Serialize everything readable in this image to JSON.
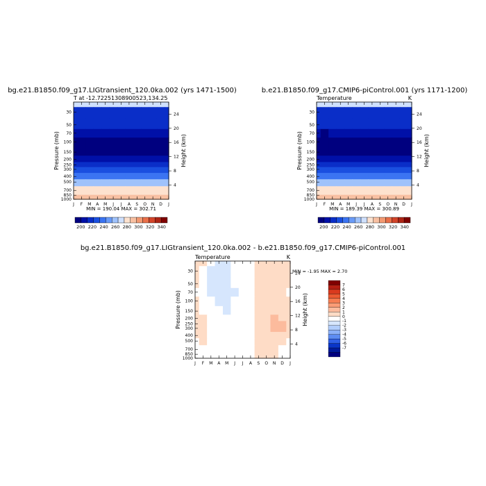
{
  "chart_data": [
    {
      "type": "heatmap",
      "title": "bg.e21.B1850.f09_g17.LIGtransient_120.0ka.002 (yrs 1471-1500)",
      "subtitle_left": "T at -12.72251308900523,134.25",
      "subtitle_right": "",
      "x_ticklabels": [
        "J",
        "F",
        "M",
        "A",
        "M",
        "J",
        "J",
        "A",
        "S",
        "O",
        "N",
        "D",
        "J"
      ],
      "ylabel": "Pressure (mb)",
      "yticks": [
        30,
        50,
        70,
        100,
        150,
        200,
        250,
        300,
        400,
        500,
        700,
        850,
        1000
      ],
      "ylim": [
        1000,
        20
      ],
      "y2label": "Height (km)",
      "y2ticks": [
        4,
        8,
        12,
        16,
        20,
        24
      ],
      "stats": "MIN = 190.04 MAX = 302.71",
      "colorbar_labels": [
        "200",
        "220",
        "240",
        "260",
        "280",
        "300",
        "320",
        "340"
      ],
      "colorbar_colors": [
        "#00007f",
        "#0010a8",
        "#0a2ec8",
        "#1a4fe0",
        "#3b74f2",
        "#6a9bf7",
        "#9fc2fb",
        "#cfe0fd",
        "#fde2cf",
        "#f8c0a2",
        "#f39a73",
        "#e9704a",
        "#d2452a",
        "#ad2516",
        "#7f0000"
      ],
      "values": [
        [
          266.0,
          268.0,
          270.0,
          272.0,
          273.0,
          272.0,
          271.0,
          270.0,
          271.0,
          272.0,
          270.0,
          268.0,
          266.0
        ],
        [
          216.0,
          216.5,
          217.0,
          217.5,
          217.5,
          218.0,
          218.0,
          218.5,
          218.0,
          217.5,
          217.0,
          216.5,
          216.0
        ],
        [
          212.0,
          212.0,
          212.5,
          213.0,
          213.0,
          213.5,
          214.0,
          214.0,
          213.5,
          213.0,
          212.5,
          212.0,
          212.0
        ],
        [
          201.5,
          201.0,
          201.5,
          202.0,
          202.5,
          203.5,
          204.5,
          205.0,
          204.0,
          203.0,
          202.0,
          201.5,
          201.5
        ],
        [
          196.0,
          195.5,
          196.0,
          196.5,
          197.0,
          198.0,
          199.0,
          199.5,
          199.0,
          198.0,
          197.0,
          196.0,
          196.0
        ],
        [
          193.0,
          193.0,
          193.0,
          193.5,
          194.0,
          194.5,
          195.0,
          195.5,
          195.0,
          194.5,
          194.0,
          193.0,
          193.0
        ],
        [
          204.0,
          204.0,
          204.0,
          204.0,
          204.0,
          204.0,
          204.0,
          204.0,
          204.0,
          204.0,
          204.0,
          204.0,
          204.0
        ],
        [
          218.0,
          218.0,
          218.0,
          218.0,
          218.0,
          218.0,
          218.0,
          218.0,
          218.0,
          218.0,
          218.0,
          218.0,
          218.0
        ],
        [
          228.0,
          228.0,
          228.0,
          228.0,
          228.0,
          228.0,
          228.0,
          228.0,
          228.0,
          228.0,
          228.0,
          228.0,
          228.0
        ],
        [
          243.0,
          243.0,
          243.0,
          243.0,
          243.0,
          243.0,
          243.0,
          243.0,
          243.0,
          243.0,
          243.0,
          243.0,
          243.0
        ],
        [
          256.0,
          256.0,
          256.0,
          256.0,
          256.0,
          256.0,
          256.0,
          256.0,
          256.0,
          256.0,
          256.0,
          256.0,
          256.0
        ],
        [
          281.0,
          281.0,
          281.0,
          281.0,
          281.0,
          281.0,
          281.0,
          281.0,
          281.0,
          281.0,
          281.0,
          281.0,
          281.0
        ],
        [
          294.0,
          294.0,
          294.0,
          294.0,
          294.0,
          294.0,
          294.0,
          294.0,
          294.0,
          294.0,
          294.0,
          294.0,
          294.0
        ]
      ],
      "value_pressures": [
        20,
        30,
        50,
        70,
        100,
        150,
        200,
        250,
        300,
        400,
        500,
        700,
        1000
      ]
    },
    {
      "type": "heatmap",
      "title": "b.e21.B1850.f09_g17.CMIP6-piControl.001 (yrs 1171-1200)",
      "subtitle_left": "Temperature",
      "subtitle_right": "K",
      "x_ticklabels": [
        "J",
        "F",
        "M",
        "A",
        "M",
        "J",
        "J",
        "A",
        "S",
        "O",
        "N",
        "D",
        "J"
      ],
      "ylabel": "Pressure (mb)",
      "yticks": [
        30,
        50,
        70,
        100,
        150,
        200,
        250,
        300,
        400,
        500,
        700,
        850,
        1000
      ],
      "ylim": [
        1000,
        20
      ],
      "y2label": "Height (km)",
      "y2ticks": [
        4,
        8,
        12,
        16,
        20,
        24
      ],
      "stats": "MIN = 189.39 MAX = 300.89",
      "colorbar_labels": [
        "200",
        "220",
        "240",
        "260",
        "280",
        "300",
        "320",
        "340"
      ],
      "colorbar_colors": [
        "#00007f",
        "#0010a8",
        "#0a2ec8",
        "#1a4fe0",
        "#3b74f2",
        "#6a9bf7",
        "#9fc2fb",
        "#cfe0fd",
        "#fde2cf",
        "#f8c0a2",
        "#f39a73",
        "#e9704a",
        "#d2452a",
        "#ad2516",
        "#7f0000"
      ],
      "values": [
        [
          265.0,
          267.0,
          269.0,
          271.0,
          272.0,
          271.0,
          270.0,
          269.0,
          270.0,
          271.0,
          269.0,
          267.0,
          265.0
        ],
        [
          215.5,
          216.0,
          216.5,
          217.0,
          217.0,
          217.5,
          217.5,
          218.0,
          217.5,
          217.0,
          216.5,
          216.0,
          215.5
        ],
        [
          211.5,
          211.5,
          212.0,
          212.5,
          212.5,
          213.0,
          213.5,
          213.5,
          213.0,
          212.5,
          212.0,
          211.5,
          211.5
        ],
        [
          201.0,
          200.5,
          201.0,
          201.5,
          202.0,
          203.0,
          204.0,
          204.5,
          203.5,
          202.5,
          201.5,
          201.0,
          201.0
        ],
        [
          195.5,
          195.0,
          195.5,
          196.0,
          196.5,
          197.5,
          198.5,
          199.0,
          198.5,
          197.5,
          196.5,
          195.5,
          195.5
        ],
        [
          192.5,
          192.5,
          192.5,
          193.0,
          193.5,
          194.0,
          194.5,
          195.0,
          194.5,
          194.0,
          193.5,
          192.5,
          192.5
        ],
        [
          203.5,
          203.5,
          203.5,
          203.5,
          203.5,
          203.5,
          203.5,
          203.5,
          203.5,
          203.5,
          203.5,
          203.5,
          203.5
        ],
        [
          217.5,
          217.5,
          217.5,
          217.5,
          217.5,
          217.5,
          217.5,
          217.5,
          217.5,
          217.5,
          217.5,
          217.5,
          217.5
        ],
        [
          227.5,
          227.5,
          227.5,
          227.5,
          227.5,
          227.5,
          227.5,
          227.5,
          227.5,
          227.5,
          227.5,
          227.5,
          227.5
        ],
        [
          242.5,
          242.5,
          242.5,
          242.5,
          242.5,
          242.5,
          242.5,
          242.5,
          242.5,
          242.5,
          242.5,
          242.5,
          242.5
        ],
        [
          255.5,
          255.5,
          255.5,
          255.5,
          255.5,
          255.5,
          255.5,
          255.5,
          255.5,
          255.5,
          255.5,
          255.5,
          255.5
        ],
        [
          280.5,
          280.5,
          280.5,
          280.5,
          280.5,
          280.5,
          280.5,
          280.5,
          280.5,
          280.5,
          280.5,
          280.5,
          280.5
        ],
        [
          293.0,
          293.0,
          293.0,
          293.0,
          293.0,
          293.0,
          293.0,
          293.0,
          293.0,
          293.0,
          293.0,
          293.0,
          293.0
        ]
      ],
      "value_pressures": [
        20,
        30,
        50,
        70,
        100,
        150,
        200,
        250,
        300,
        400,
        500,
        700,
        1000
      ]
    },
    {
      "type": "heatmap",
      "title": "bg.e21.B1850.f09_g17.LIGtransient_120.0ka.002 - b.e21.B1850.f09_g17.CMIP6-piControl.001",
      "subtitle_left": "Temperature",
      "subtitle_right": "K",
      "x_ticklabels": [
        "J",
        "F",
        "M",
        "A",
        "M",
        "J",
        "J",
        "A",
        "S",
        "O",
        "N",
        "D",
        "J"
      ],
      "ylabel": "Pressure (mb)",
      "yticks": [
        30,
        50,
        70,
        100,
        150,
        200,
        250,
        300,
        400,
        500,
        700,
        850,
        1000
      ],
      "ylim": [
        1000,
        20
      ],
      "y2label": "Height (km)",
      "y2ticks": [
        4,
        8,
        12,
        16,
        20,
        24
      ],
      "stats": "MIN = -1.95 MAX = 2.70",
      "colorbar_labels": [
        "7",
        "6",
        "5",
        "4",
        "3",
        "2",
        "1",
        "0",
        "-1",
        "-2",
        "-3",
        "-4",
        "-5",
        "-6",
        "-7"
      ],
      "colorbar_colors": [
        "#800000",
        "#b31e12",
        "#d93a1e",
        "#ec5a32",
        "#f67d52",
        "#fa9c76",
        "#fcbb9d",
        "#fedcc6",
        "#ffffff",
        "#d6e6fd",
        "#b1cdfb",
        "#8bb0f8",
        "#5d8cf2",
        "#2f5fe6",
        "#0a35c8",
        "#001a9b",
        "#00007f"
      ],
      "values": [
        [
          0.8,
          0.6,
          -0.4,
          -0.7,
          -0.8,
          -0.2,
          0.1,
          0.4,
          0.7,
          0.9,
          0.8,
          0.6,
          0.8
        ],
        [
          0.6,
          0.4,
          -0.6,
          -1.2,
          -1.0,
          -0.3,
          0.0,
          0.4,
          0.8,
          1.2,
          1.0,
          0.6,
          0.6
        ],
        [
          0.5,
          0.2,
          -0.6,
          -1.4,
          -1.2,
          -0.4,
          -0.1,
          0.3,
          0.8,
          1.3,
          1.1,
          0.7,
          0.5
        ],
        [
          0.4,
          0.1,
          -0.5,
          -1.3,
          -1.3,
          -0.5,
          -0.2,
          0.2,
          0.7,
          1.2,
          1.2,
          0.8,
          0.4
        ],
        [
          0.6,
          0.3,
          -0.3,
          -0.6,
          -0.6,
          -0.4,
          -0.3,
          0.1,
          0.6,
          1.0,
          1.2,
          0.9,
          0.6
        ],
        [
          0.7,
          0.4,
          -0.1,
          -0.4,
          -0.5,
          -0.4,
          -0.2,
          0.1,
          0.6,
          1.1,
          1.4,
          1.2,
          0.7
        ],
        [
          0.8,
          0.6,
          0.0,
          -0.3,
          -0.4,
          -0.4,
          -0.2,
          0.2,
          0.8,
          1.3,
          1.6,
          1.4,
          0.8
        ],
        [
          0.8,
          0.7,
          0.1,
          -0.3,
          -0.4,
          -0.4,
          -0.2,
          0.2,
          0.8,
          1.4,
          1.7,
          1.6,
          0.8
        ],
        [
          0.7,
          0.7,
          0.1,
          -0.3,
          -0.4,
          -0.3,
          -0.1,
          0.2,
          0.8,
          1.4,
          1.6,
          1.5,
          0.7
        ],
        [
          0.6,
          0.7,
          0.1,
          -0.2,
          -0.3,
          -0.3,
          -0.1,
          0.2,
          0.6,
          1.0,
          1.2,
          1.0,
          0.6
        ],
        [
          0.4,
          0.5,
          0.1,
          -0.2,
          -0.3,
          -0.2,
          -0.1,
          0.2,
          0.5,
          0.8,
          0.9,
          0.7,
          0.4
        ],
        [
          0.2,
          0.3,
          0.1,
          -0.2,
          -0.3,
          -0.2,
          0.0,
          0.3,
          0.5,
          0.6,
          0.6,
          0.4,
          0.2
        ],
        [
          0.2,
          0.2,
          0.1,
          -0.1,
          -0.2,
          -0.1,
          0.1,
          0.3,
          0.5,
          0.6,
          0.5,
          0.3,
          0.2
        ]
      ],
      "value_pressures": [
        20,
        30,
        50,
        70,
        100,
        150,
        200,
        250,
        300,
        400,
        500,
        700,
        1000
      ]
    }
  ]
}
